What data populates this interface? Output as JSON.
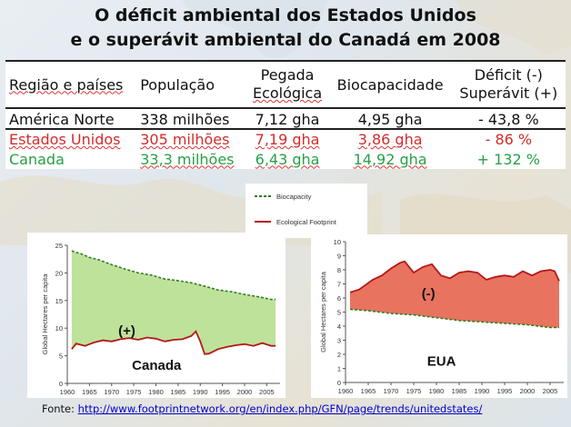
{
  "title": {
    "line1": "O déficit ambiental dos Estados Unidos",
    "line2": "e o superávit ambiental do Canadá em 2008"
  },
  "table": {
    "headers": [
      [
        "Região e países"
      ],
      [
        "População"
      ],
      [
        "Pegada",
        "Ecológica"
      ],
      [
        "Biocapacidade"
      ],
      [
        "Déficit (-)",
        "Superávit (+)"
      ]
    ],
    "rows": [
      {
        "cells": [
          "América Norte",
          "338 milhões",
          "7,12 gha",
          "4,95 gha",
          "- 43,8 %"
        ],
        "color": "#111111"
      },
      {
        "cells": [
          "Estados Unidos",
          "305 milhões",
          "7,19 gha",
          "3,86 gha",
          "- 86 %"
        ],
        "color": "#d42b2b"
      },
      {
        "cells": [
          "Canada",
          "33,3 milhões",
          "6,43 gha",
          "14,92 gha",
          "+ 132 %"
        ],
        "color": "#27a046"
      }
    ]
  },
  "legend": {
    "items": [
      {
        "label": "Biocapacity",
        "color": "#2f7d1f",
        "dash": true
      },
      {
        "label": "Ecological Footprint",
        "color": "#b51818",
        "dash": false
      }
    ]
  },
  "source": {
    "label": "Fonte:",
    "url": "http://www.footprintnetwork.org/en/index.php/GFN/page/trends/unitedstates/"
  },
  "colors": {
    "surplus_fill": "#bfe29a",
    "deficit_fill": "#e8735f",
    "biocapacity_line": "#2f7d1f",
    "footprint_line": "#b51818"
  },
  "chart_data": [
    {
      "type": "area",
      "panel": "left",
      "caption": "Canada",
      "annotation": "(+)",
      "ylabel": "Global Hectares per capita",
      "xlabel": "",
      "xlim": [
        1960,
        2008
      ],
      "ylim": [
        0,
        25
      ],
      "x_ticks": [
        1960,
        1965,
        1970,
        1975,
        1980,
        1985,
        1990,
        1995,
        2000,
        2005
      ],
      "y_ticks": [
        0,
        5,
        10,
        15,
        20,
        25
      ],
      "fill": "surplus",
      "series": [
        {
          "name": "Biocapacity",
          "x": [
            1961,
            1962,
            1963,
            1965,
            1967,
            1970,
            1973,
            1976,
            1979,
            1982,
            1985,
            1988,
            1991,
            1994,
            1997,
            2000,
            2003,
            2006,
            2007
          ],
          "y": [
            24,
            23.7,
            23.5,
            22.8,
            22.4,
            21.5,
            20.7,
            20.0,
            19.6,
            18.9,
            18.6,
            18.2,
            17.6,
            16.9,
            16.6,
            16.1,
            15.7,
            15.2,
            15.2
          ]
        },
        {
          "name": "Ecological Footprint",
          "x": [
            1961,
            1962,
            1964,
            1966,
            1968,
            1970,
            1972,
            1974,
            1976,
            1978,
            1980,
            1982,
            1984,
            1986,
            1988,
            1989,
            1990,
            1991,
            1992,
            1994,
            1996,
            1998,
            2000,
            2002,
            2004,
            2006,
            2007
          ],
          "y": [
            6.2,
            7.2,
            6.8,
            7.4,
            7.8,
            7.6,
            8.0,
            8.2,
            7.9,
            8.3,
            8.1,
            7.6,
            7.9,
            8.0,
            8.6,
            9.4,
            7.6,
            5.3,
            5.4,
            6.2,
            6.6,
            6.9,
            7.1,
            6.8,
            7.3,
            6.8,
            6.8
          ]
        }
      ]
    },
    {
      "type": "area",
      "panel": "right",
      "caption": "EUA",
      "annotation": "(-)",
      "ylabel": "Global Hectares per capita",
      "xlabel": "",
      "xlim": [
        1960,
        2008
      ],
      "ylim": [
        0,
        10
      ],
      "x_ticks": [
        1960,
        1965,
        1970,
        1975,
        1980,
        1985,
        1990,
        1995,
        2000,
        2005
      ],
      "y_ticks": [
        0,
        1,
        2,
        3,
        4,
        5,
        6,
        7,
        8,
        9,
        10
      ],
      "fill": "deficit",
      "series": [
        {
          "name": "Biocapacity",
          "x": [
            1961,
            1965,
            1970,
            1975,
            1980,
            1985,
            1990,
            1995,
            2000,
            2005,
            2007
          ],
          "y": [
            5.2,
            5.1,
            4.9,
            4.8,
            4.6,
            4.4,
            4.3,
            4.2,
            4.1,
            3.9,
            3.9
          ]
        },
        {
          "name": "Ecological Footprint",
          "x": [
            1961,
            1963,
            1966,
            1968,
            1970,
            1972,
            1973,
            1975,
            1977,
            1979,
            1981,
            1983,
            1985,
            1987,
            1989,
            1991,
            1993,
            1995,
            1997,
            1999,
            2001,
            2003,
            2005,
            2006,
            2007
          ],
          "y": [
            6.4,
            6.6,
            7.3,
            7.6,
            8.1,
            8.5,
            8.6,
            7.8,
            8.2,
            8.4,
            7.6,
            7.4,
            7.8,
            7.9,
            7.8,
            7.3,
            7.5,
            7.6,
            7.5,
            7.9,
            7.6,
            7.9,
            8.0,
            7.9,
            7.2
          ]
        }
      ]
    }
  ]
}
